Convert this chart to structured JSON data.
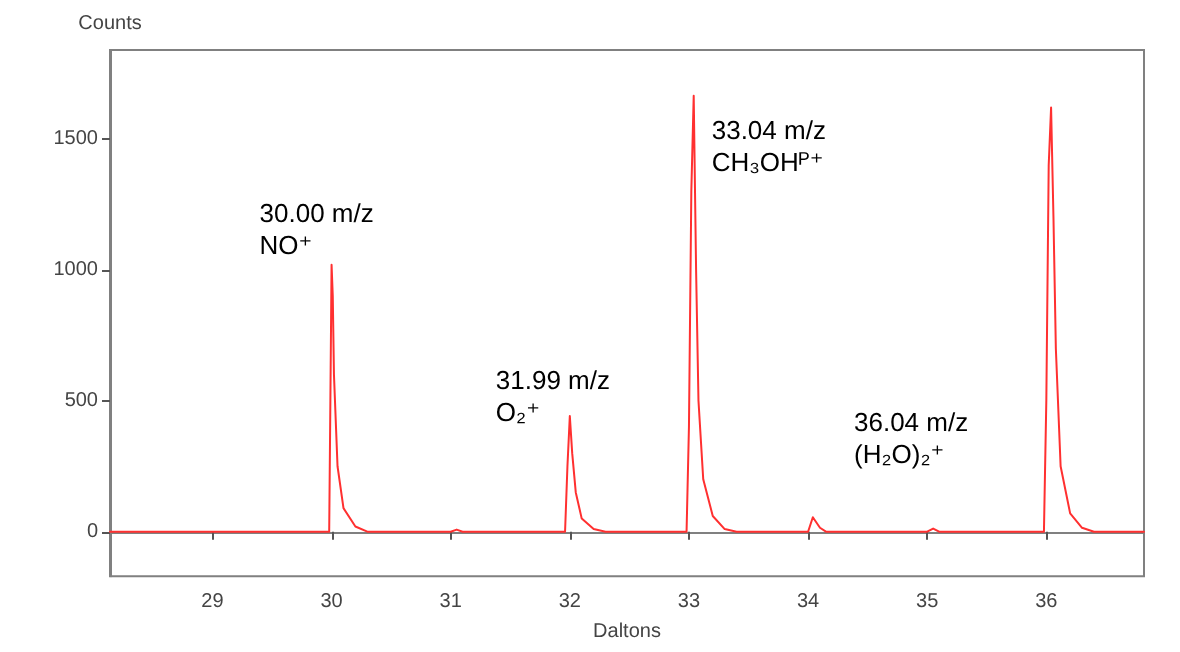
{
  "chart_data": {
    "type": "line",
    "xlabel": "Daltons",
    "ylabel": "Counts",
    "xlim": [
      28.14,
      36.82
    ],
    "xticks": [
      29,
      30,
      31,
      32,
      33,
      34,
      35,
      36
    ],
    "ylim": [
      -170,
      1840
    ],
    "yticks": [
      0,
      500,
      1000,
      1500
    ],
    "marker": "none",
    "line_style": "solid",
    "annotations": [
      {
        "text": "30.00 m/z\nNO⁺",
        "x": 30.0,
        "y": 1020
      },
      {
        "text": "31.99 m/z\nO₂⁺",
        "x": 32.0,
        "y": 442
      },
      {
        "text": "33.04 m/z\nCH₃OHᴾ⁺",
        "x": 33.04,
        "y": 1665
      },
      "36.04 m/z\n(H₂O)₂⁺"
    ],
    "series": [
      {
        "color": "#ff3030",
        "x": [
          28.14,
          29.0,
          29.98,
          29.99,
          30.0,
          30.01,
          30.02,
          30.05,
          30.1,
          30.2,
          30.3,
          31.0,
          31.05,
          31.1,
          31.96,
          31.98,
          32.0,
          32.02,
          32.05,
          32.1,
          32.2,
          32.3,
          32.98,
          33.0,
          33.02,
          33.04,
          33.06,
          33.08,
          33.12,
          33.2,
          33.3,
          33.4,
          34.0,
          34.04,
          34.1,
          34.15,
          35.0,
          35.05,
          35.1,
          35.98,
          36.0,
          36.02,
          36.04,
          36.06,
          36.08,
          36.12,
          36.2,
          36.3,
          36.4,
          36.82
        ],
        "values": [
          0,
          0,
          0,
          500,
          1020,
          900,
          600,
          250,
          90,
          20,
          0,
          0,
          8,
          0,
          0,
          250,
          442,
          300,
          150,
          50,
          10,
          0,
          0,
          400,
          1300,
          1665,
          1000,
          500,
          200,
          60,
          10,
          0,
          0,
          55,
          15,
          0,
          0,
          12,
          0,
          0,
          500,
          1400,
          1620,
          1200,
          700,
          250,
          70,
          15,
          0,
          0
        ]
      }
    ]
  }
}
